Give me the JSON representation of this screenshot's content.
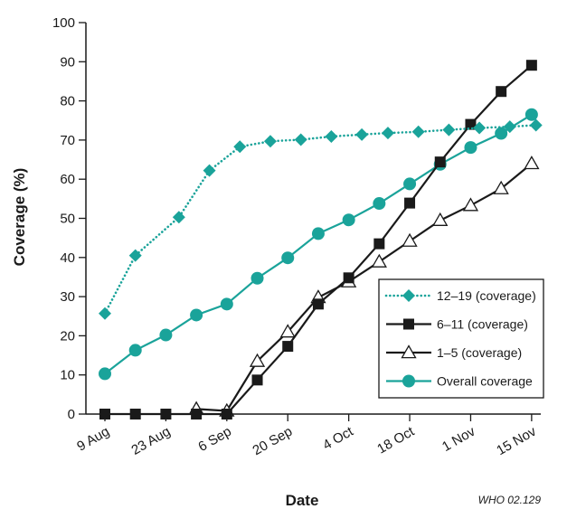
{
  "chart_data": {
    "type": "line",
    "xlabel": "Date",
    "ylabel": "Coverage (%)",
    "ylim": [
      0,
      100
    ],
    "yticks": [
      0,
      10,
      20,
      30,
      40,
      50,
      60,
      70,
      80,
      90,
      100
    ],
    "xlim": [
      "2002-08-09",
      "2002-11-22"
    ],
    "xticks": [
      {
        "date": "2002-08-09",
        "label": "9 Aug"
      },
      {
        "date": "2002-08-23",
        "label": "23 Aug"
      },
      {
        "date": "2002-09-06",
        "label": "6 Sep"
      },
      {
        "date": "2002-09-20",
        "label": "20 Sep"
      },
      {
        "date": "2002-10-04",
        "label": "4 Oct"
      },
      {
        "date": "2002-10-18",
        "label": "18 Oct"
      },
      {
        "date": "2002-11-01",
        "label": "1 Nov"
      },
      {
        "date": "2002-11-15",
        "label": "15 Nov"
      }
    ],
    "grid": false,
    "legend_position": "bottom-right",
    "credit": "WHO 02.129",
    "series": [
      {
        "name": "12–19 (coverage)",
        "color": "#1aa39a",
        "line": "dotted",
        "marker": "diamond",
        "points": [
          {
            "x": "2002-08-09",
            "y": 25.7
          },
          {
            "x": "2002-08-16",
            "y": 40.5
          },
          {
            "x": "2002-08-26",
            "y": 50.3
          },
          {
            "x": "2002-09-02",
            "y": 62.2
          },
          {
            "x": "2002-09-09",
            "y": 68.3
          },
          {
            "x": "2002-09-16",
            "y": 69.7
          },
          {
            "x": "2002-09-23",
            "y": 70.1
          },
          {
            "x": "2002-09-30",
            "y": 70.9
          },
          {
            "x": "2002-10-07",
            "y": 71.4
          },
          {
            "x": "2002-10-13",
            "y": 71.8
          },
          {
            "x": "2002-10-20",
            "y": 72.1
          },
          {
            "x": "2002-10-27",
            "y": 72.6
          },
          {
            "x": "2002-11-03",
            "y": 73.1
          },
          {
            "x": "2002-11-10",
            "y": 73.4
          },
          {
            "x": "2002-11-16",
            "y": 73.8
          }
        ]
      },
      {
        "name": "6–11 (coverage)",
        "color": "#1a1a1a",
        "line": "solid",
        "marker": "square",
        "points": [
          {
            "x": "2002-08-09",
            "y": 0
          },
          {
            "x": "2002-08-16",
            "y": 0
          },
          {
            "x": "2002-08-23",
            "y": 0
          },
          {
            "x": "2002-08-30",
            "y": 0
          },
          {
            "x": "2002-09-06",
            "y": 0
          },
          {
            "x": "2002-09-13",
            "y": 8.7
          },
          {
            "x": "2002-09-20",
            "y": 17.3
          },
          {
            "x": "2002-09-27",
            "y": 28.1
          },
          {
            "x": "2002-10-04",
            "y": 34.8
          },
          {
            "x": "2002-10-11",
            "y": 43.5
          },
          {
            "x": "2002-10-18",
            "y": 53.9
          },
          {
            "x": "2002-10-25",
            "y": 64.4
          },
          {
            "x": "2002-11-01",
            "y": 74.0
          },
          {
            "x": "2002-11-08",
            "y": 82.4
          },
          {
            "x": "2002-11-15",
            "y": 89.1
          }
        ]
      },
      {
        "name": "1–5 (coverage)",
        "color": "#1a1a1a",
        "line": "solid",
        "marker": "triangle-open",
        "points": [
          {
            "x": "2002-08-30",
            "y": 1.3
          },
          {
            "x": "2002-09-06",
            "y": 0.8
          },
          {
            "x": "2002-09-13",
            "y": 13.5
          },
          {
            "x": "2002-09-20",
            "y": 21.0
          },
          {
            "x": "2002-09-27",
            "y": 29.8
          },
          {
            "x": "2002-10-04",
            "y": 33.8
          },
          {
            "x": "2002-10-11",
            "y": 38.9
          },
          {
            "x": "2002-10-18",
            "y": 44.2
          },
          {
            "x": "2002-10-25",
            "y": 49.5
          },
          {
            "x": "2002-11-01",
            "y": 53.3
          },
          {
            "x": "2002-11-08",
            "y": 57.6
          },
          {
            "x": "2002-11-15",
            "y": 64.0
          }
        ]
      },
      {
        "name": "Overall coverage",
        "color": "#1aa39a",
        "line": "solid",
        "marker": "circle",
        "points": [
          {
            "x": "2002-08-09",
            "y": 10.3
          },
          {
            "x": "2002-08-16",
            "y": 16.3
          },
          {
            "x": "2002-08-23",
            "y": 20.2
          },
          {
            "x": "2002-08-30",
            "y": 25.3
          },
          {
            "x": "2002-09-06",
            "y": 28.1
          },
          {
            "x": "2002-09-13",
            "y": 34.7
          },
          {
            "x": "2002-09-20",
            "y": 39.9
          },
          {
            "x": "2002-09-27",
            "y": 46.1
          },
          {
            "x": "2002-10-04",
            "y": 49.6
          },
          {
            "x": "2002-10-11",
            "y": 53.8
          },
          {
            "x": "2002-10-18",
            "y": 58.8
          },
          {
            "x": "2002-10-25",
            "y": 63.8
          },
          {
            "x": "2002-11-01",
            "y": 68.1
          },
          {
            "x": "2002-11-08",
            "y": 71.7
          },
          {
            "x": "2002-11-15",
            "y": 76.5
          }
        ]
      }
    ]
  }
}
